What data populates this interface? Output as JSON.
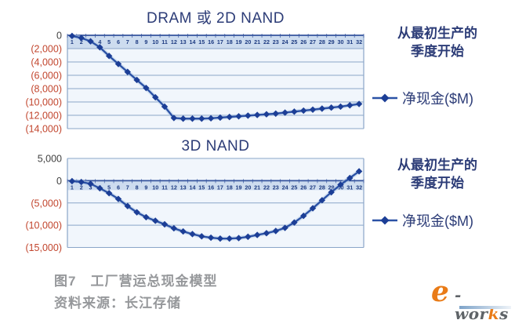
{
  "colors": {
    "title": "#2c3c77",
    "negative": "#c2462e",
    "zero_label": "#3f3f3f",
    "line": "#2b52a6",
    "line_halo": "#b9cfe9",
    "marker": "#1c3e96",
    "grid": "#8aa5c8",
    "axis": "#35549e",
    "band": "#cddcef",
    "plot_bg": "#f1f6fc",
    "xlabels": "#1c3a80",
    "side_text": "#2c3c77",
    "caption": "#96989b",
    "logo_orange": "#e97b17",
    "logo_gray": "#5f6468",
    "logo_bar": "#7da3c9"
  },
  "chart_data": [
    {
      "type": "line",
      "title": "DRAM 或 2D NAND",
      "legend": "净现金($M)",
      "legend_position": "right",
      "annotation_lines": [
        "从最初生产的",
        "季度开始"
      ],
      "grid": true,
      "x": [
        1,
        2,
        3,
        4,
        5,
        6,
        7,
        8,
        9,
        10,
        11,
        12,
        13,
        14,
        15,
        16,
        17,
        18,
        19,
        20,
        21,
        22,
        23,
        24,
        25,
        26,
        27,
        28,
        29,
        30,
        31,
        32
      ],
      "values": [
        -100,
        -400,
        -900,
        -1800,
        -3100,
        -4300,
        -5500,
        -6700,
        -7900,
        -9300,
        -10700,
        -12400,
        -12500,
        -12500,
        -12500,
        -12450,
        -12350,
        -12250,
        -12150,
        -12050,
        -11950,
        -11850,
        -11750,
        -11600,
        -11450,
        -11300,
        -11150,
        -11000,
        -10850,
        -10700,
        -10500,
        -10300
      ],
      "ylim": [
        -14000,
        0
      ],
      "yticks": [
        0,
        -2000,
        -4000,
        -6000,
        -8000,
        -10000,
        -12000,
        -14000
      ],
      "ytick_labels": [
        "0",
        "(2,000)",
        "(4,000)",
        "(6,000)",
        "(8,000)",
        "(10,000)",
        "(12,000)",
        "(14,000)"
      ]
    },
    {
      "type": "line",
      "title": "3D NAND",
      "legend": "净现金($M)",
      "legend_position": "right",
      "annotation_lines": [
        "从最初生产的",
        "季度开始"
      ],
      "grid": true,
      "x": [
        1,
        2,
        3,
        4,
        5,
        6,
        7,
        8,
        9,
        10,
        11,
        12,
        13,
        14,
        15,
        16,
        17,
        18,
        19,
        20,
        21,
        22,
        23,
        24,
        25,
        26,
        27,
        28,
        29,
        30,
        31,
        32
      ],
      "values": [
        -100,
        -300,
        -700,
        -1700,
        -2800,
        -4100,
        -5700,
        -7100,
        -8200,
        -9000,
        -9800,
        -10700,
        -11400,
        -12000,
        -12500,
        -12800,
        -13000,
        -13000,
        -12900,
        -12600,
        -12200,
        -11800,
        -11300,
        -10600,
        -9400,
        -7900,
        -6200,
        -4400,
        -2600,
        -900,
        600,
        2100
      ],
      "ylim": [
        -15000,
        5000
      ],
      "yticks": [
        5000,
        0,
        -5000,
        -10000,
        -15000
      ],
      "ytick_labels": [
        "5,000",
        "0",
        "(5,000)",
        "(10,000)",
        "(15,000)"
      ]
    }
  ],
  "figure": {
    "caption_line1": "图7　工厂营运总现金模型",
    "caption_line2": "资料来源：长江存储"
  },
  "logo": {
    "e": "e",
    "part1": "-wor",
    "k": "k",
    "part2": "s"
  }
}
